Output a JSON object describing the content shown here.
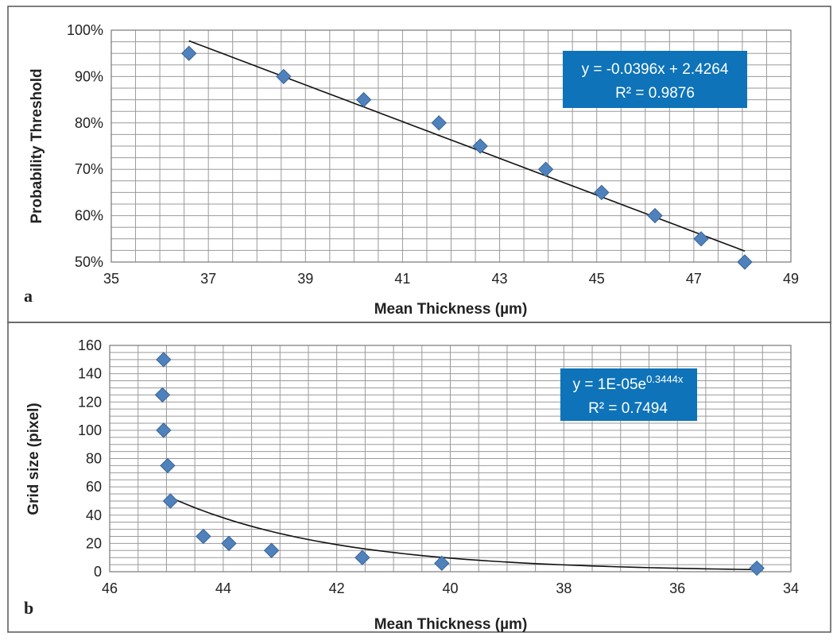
{
  "colors": {
    "marker": "#4f81bd",
    "marker_stroke": "#3a6596",
    "equation_box": "#0e73b8",
    "trendline": "#111111",
    "grid": "#9a9a9a"
  },
  "chart_data": [
    {
      "type": "scatter",
      "panel_label": "a",
      "xlabel": "Mean Thickness (µm)",
      "ylabel": "Probability Threshold",
      "xlim": [
        35,
        49
      ],
      "ylim": [
        0.5,
        1.0
      ],
      "x_ticks": [
        "35",
        "37",
        "39",
        "41",
        "43",
        "45",
        "47",
        "49"
      ],
      "y_ticks": [
        "50%",
        "60%",
        "70%",
        "80%",
        "90%",
        "100%"
      ],
      "grid": "on",
      "series": [
        {
          "x": [
            36.6,
            38.55,
            40.2,
            41.75,
            42.6,
            43.95,
            45.1,
            46.2,
            47.15,
            48.05
          ],
          "y": [
            0.95,
            0.9,
            0.85,
            0.8,
            0.75,
            0.7,
            0.65,
            0.6,
            0.55,
            0.5
          ]
        }
      ],
      "trendline": {
        "type": "linear",
        "slope": -0.0396,
        "intercept": 2.4264,
        "x_range": [
          36.6,
          48.05
        ],
        "equation_lines": [
          "y = -0.0396x + 2.4264",
          "R² = 0.9876"
        ]
      },
      "legend_placement": "top-right"
    },
    {
      "type": "scatter",
      "panel_label": "b",
      "xlabel": "Mean Thickness (µm)",
      "ylabel": "Grid size (pixel)",
      "xlim": [
        46,
        34
      ],
      "ylim": [
        0,
        160
      ],
      "x_reversed": true,
      "x_ticks": [
        "46",
        "44",
        "42",
        "40",
        "38",
        "36",
        "34"
      ],
      "y_ticks": [
        "0",
        "20",
        "40",
        "60",
        "80",
        "100",
        "120",
        "140",
        "160"
      ],
      "grid": "on",
      "series": [
        {
          "x": [
            45.05,
            45.07,
            45.05,
            44.98,
            44.93,
            44.35,
            43.9,
            43.15,
            41.55,
            40.15,
            34.6
          ],
          "y": [
            150,
            125,
            100,
            75,
            50,
            25,
            20,
            15,
            10,
            6,
            2.5
          ]
        }
      ],
      "trendline": {
        "type": "exponential",
        "a": 1e-05,
        "b": 0.3444,
        "x_range": [
          34.6,
          44.95
        ],
        "equation_base": "y = 1E-05e",
        "equation_exp": "0.3444x",
        "equation_r2": "R² = 0.7494"
      },
      "legend_placement": "top-right"
    }
  ]
}
